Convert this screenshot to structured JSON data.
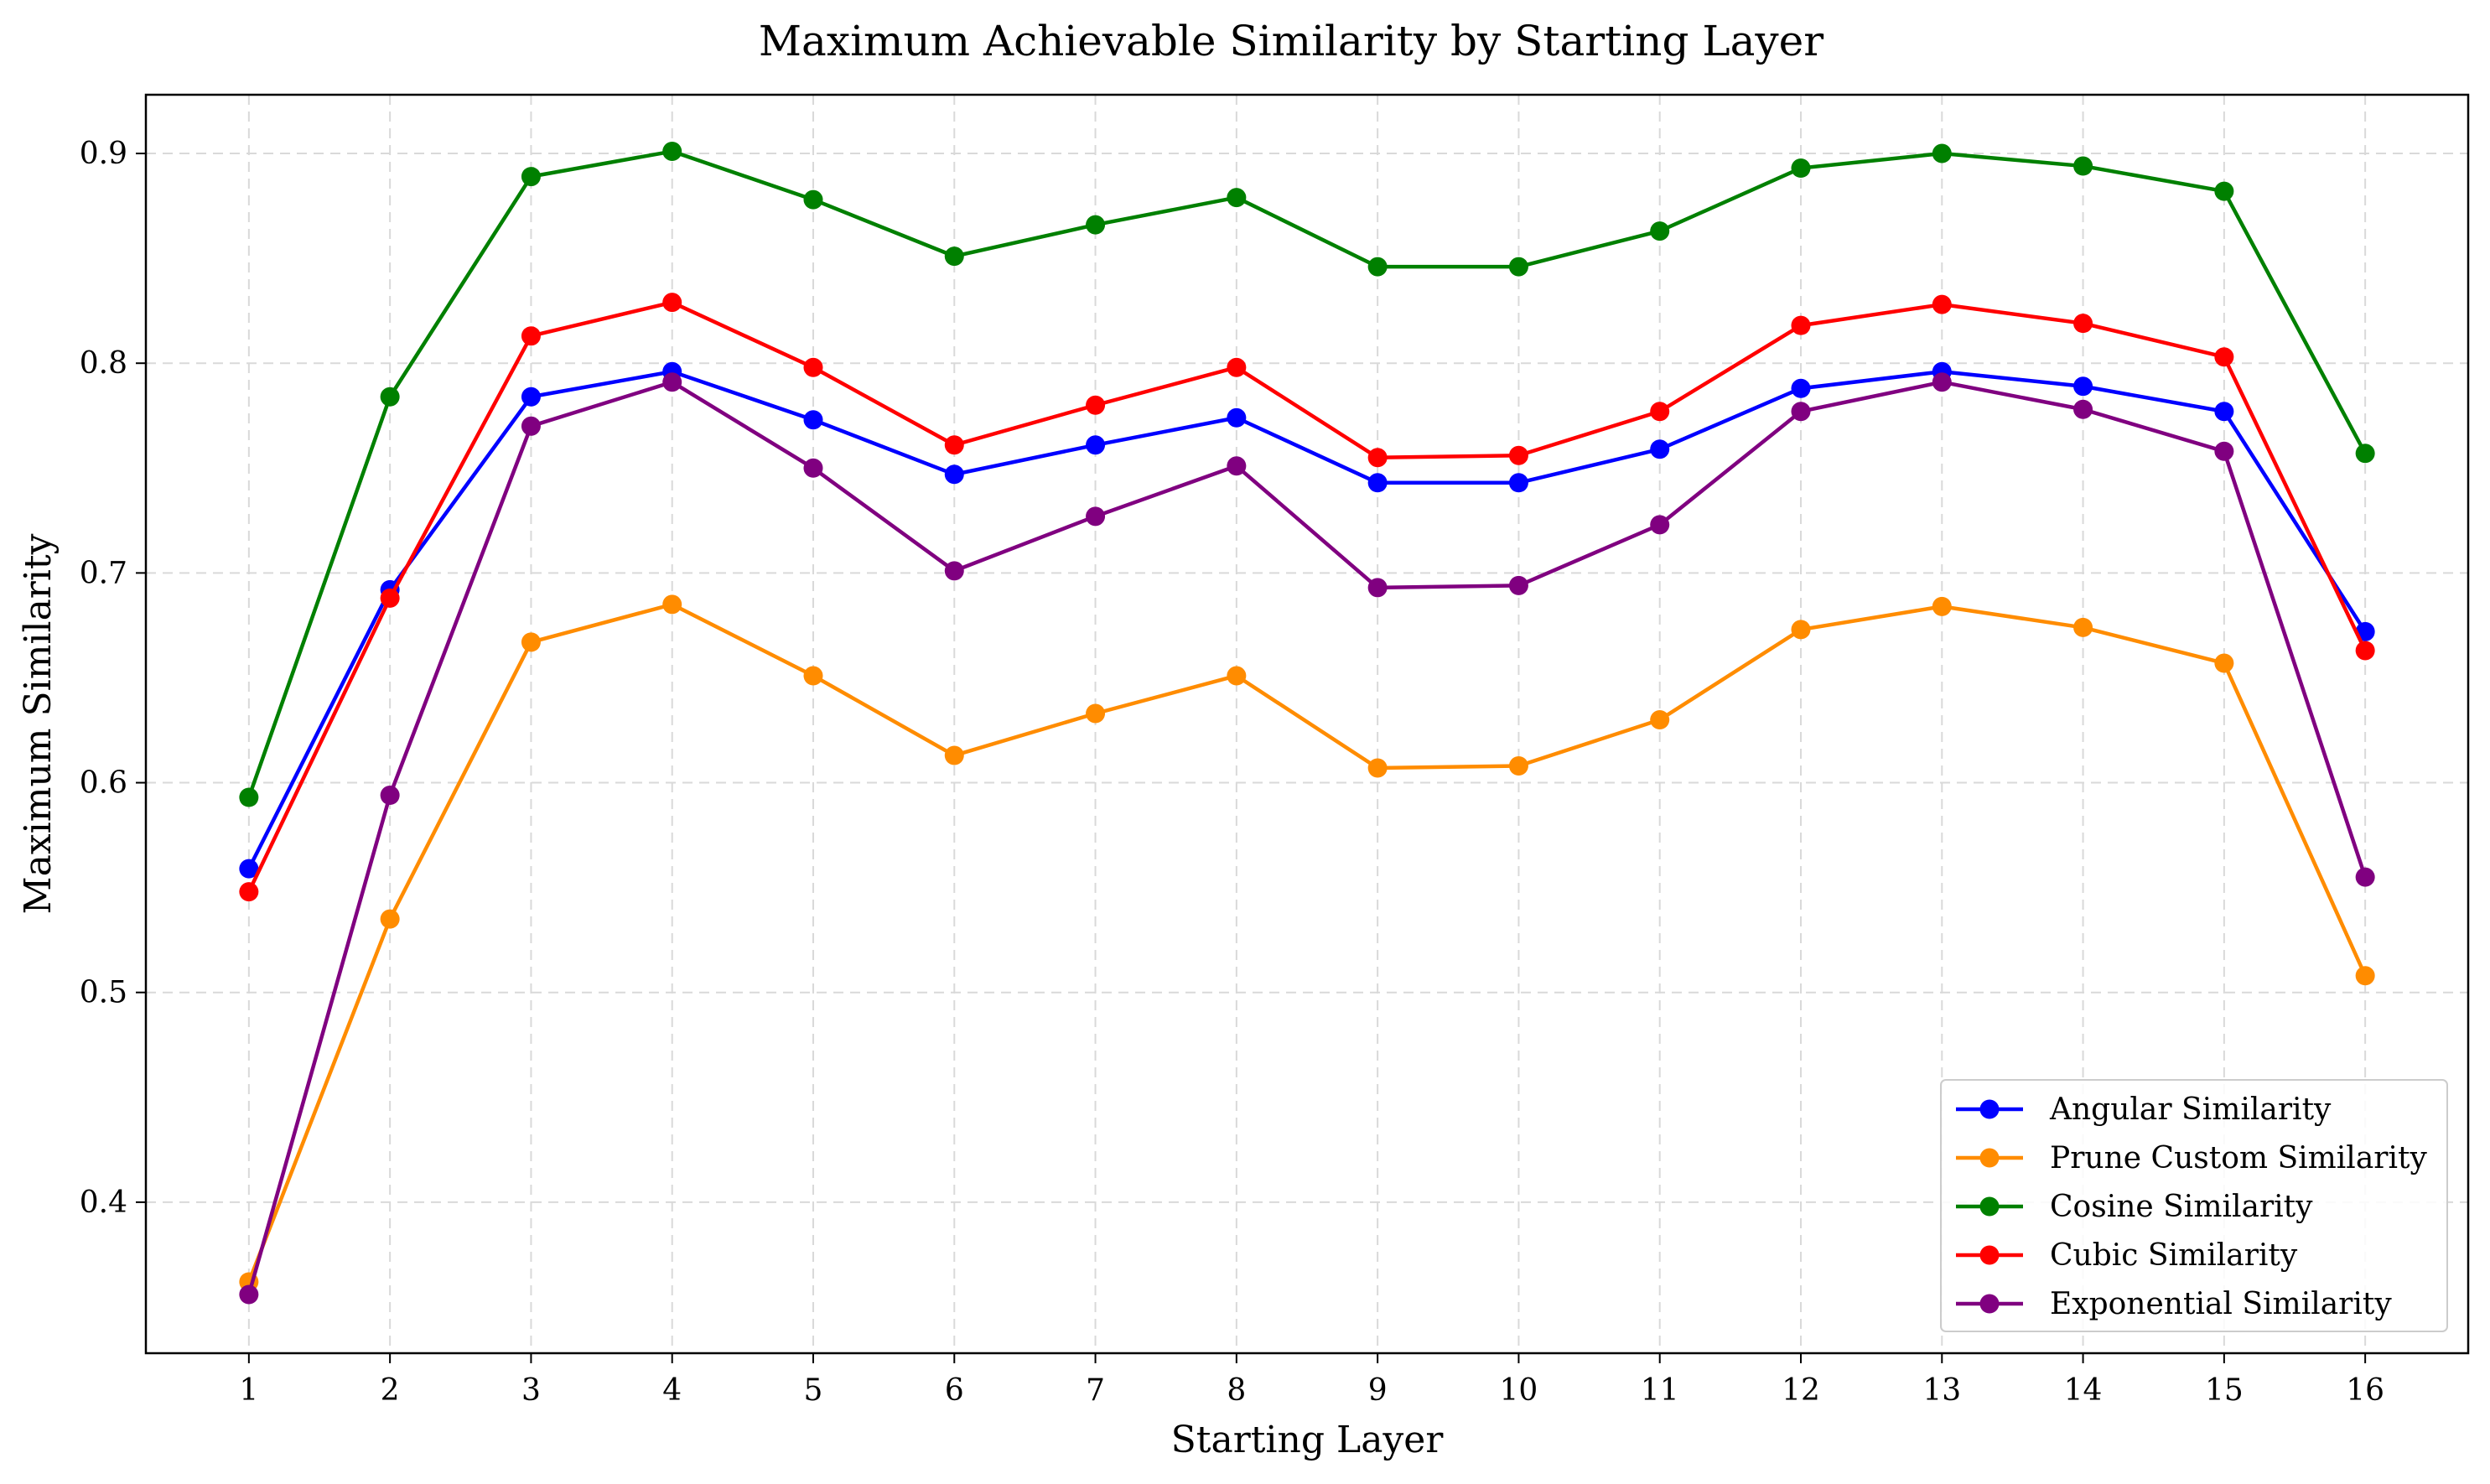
{
  "chart_data": {
    "type": "line",
    "title": "Maximum Achievable Similarity by Starting Layer",
    "xlabel": "Starting Layer",
    "ylabel": "Maximum Similarity",
    "x": [
      1,
      2,
      3,
      4,
      5,
      6,
      7,
      8,
      9,
      10,
      11,
      12,
      13,
      14,
      15,
      16
    ],
    "x_tick_labels": [
      "1",
      "2",
      "3",
      "4",
      "5",
      "6",
      "7",
      "8",
      "9",
      "10",
      "11",
      "12",
      "13",
      "14",
      "15",
      "16"
    ],
    "y_ticks": [
      0.4,
      0.5,
      0.6,
      0.7,
      0.8,
      0.9
    ],
    "y_tick_labels": [
      "0.4",
      "0.5",
      "0.6",
      "0.7",
      "0.8",
      "0.9"
    ],
    "xlim": [
      0.27,
      16.73
    ],
    "ylim": [
      0.328,
      0.928
    ],
    "grid": true,
    "legend_position": "bottom-right",
    "series": [
      {
        "name": "Angular Similarity",
        "color": "#0000ff",
        "values": [
          0.559,
          0.692,
          0.784,
          0.796,
          0.773,
          0.747,
          0.761,
          0.774,
          0.743,
          0.743,
          0.759,
          0.788,
          0.796,
          0.789,
          0.777,
          0.672
        ]
      },
      {
        "name": "Prune Custom Similarity",
        "color": "#ff8c00",
        "values": [
          0.362,
          0.535,
          0.667,
          0.685,
          0.651,
          0.613,
          0.633,
          0.651,
          0.607,
          0.608,
          0.63,
          0.673,
          0.684,
          0.674,
          0.657,
          0.508
        ]
      },
      {
        "name": "Cosine Similarity",
        "color": "#008000",
        "values": [
          0.593,
          0.784,
          0.889,
          0.901,
          0.878,
          0.851,
          0.866,
          0.879,
          0.846,
          0.846,
          0.863,
          0.893,
          0.9,
          0.894,
          0.882,
          0.757
        ]
      },
      {
        "name": "Cubic Similarity",
        "color": "#ff0000",
        "values": [
          0.548,
          0.688,
          0.813,
          0.829,
          0.798,
          0.761,
          0.78,
          0.798,
          0.755,
          0.756,
          0.777,
          0.818,
          0.828,
          0.819,
          0.803,
          0.663
        ]
      },
      {
        "name": "Exponential Similarity",
        "color": "#800080",
        "values": [
          0.356,
          0.594,
          0.77,
          0.791,
          0.75,
          0.701,
          0.727,
          0.751,
          0.693,
          0.694,
          0.723,
          0.777,
          0.791,
          0.778,
          0.758,
          0.555
        ]
      }
    ]
  }
}
